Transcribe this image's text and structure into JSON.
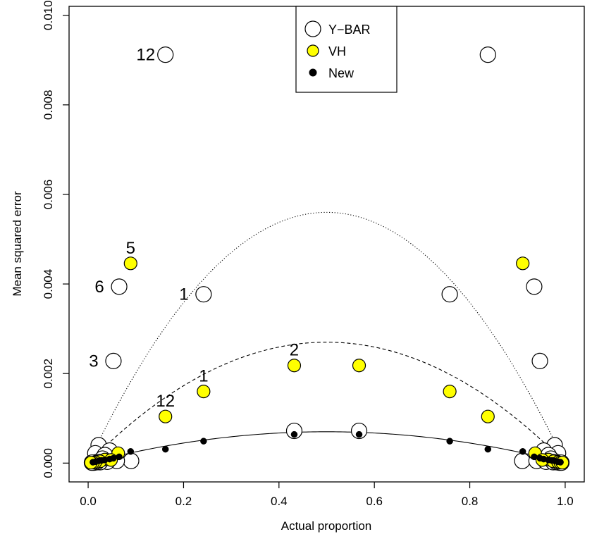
{
  "chart_data": {
    "type": "scatter",
    "xlabel": "Actual proportion",
    "ylabel": "Mean squared error",
    "xlim": [
      -0.04,
      1.04
    ],
    "ylim": [
      -0.00042,
      0.0102
    ],
    "xticks": [
      "0.0",
      "0.2",
      "0.4",
      "0.6",
      "0.8",
      "1.0"
    ],
    "xtick_values": [
      0,
      0.2,
      0.4,
      0.6,
      0.8,
      1.0
    ],
    "yticks": [
      "0.000",
      "0.002",
      "0.004",
      "0.006",
      "0.008",
      "0.010"
    ],
    "ytick_values": [
      0,
      0.002,
      0.004,
      0.006,
      0.008,
      0.01
    ],
    "legend": {
      "placement": "top-center",
      "entries": [
        {
          "label": "Y−BAR",
          "marker": "open-circle",
          "color": "#ffffff"
        },
        {
          "label": "VH",
          "marker": "filled-circle",
          "color": "#ffff00"
        },
        {
          "label": "New",
          "marker": "small-black-dot",
          "color": "#000000"
        }
      ]
    },
    "series": [
      {
        "name": "Y−BAR",
        "marker": "open-circle",
        "points": [
          [
            0.162,
            0.00912
          ],
          [
            0.838,
            0.00912
          ],
          [
            0.065,
            0.00394
          ],
          [
            0.935,
            0.00394
          ],
          [
            0.242,
            0.00377
          ],
          [
            0.758,
            0.00377
          ],
          [
            0.053,
            0.00228
          ],
          [
            0.947,
            0.00228
          ],
          [
            0.432,
            0.00072
          ],
          [
            0.568,
            0.00072
          ],
          [
            0.022,
            0.0004
          ],
          [
            0.978,
            0.0004
          ],
          [
            0.045,
            0.00028
          ],
          [
            0.955,
            0.00028
          ],
          [
            0.015,
            0.00022
          ],
          [
            0.985,
            0.00022
          ],
          [
            0.035,
            0.00018
          ],
          [
            0.965,
            0.00018
          ],
          [
            0.03,
            0.0001
          ],
          [
            0.97,
            0.0001
          ],
          [
            0.09,
            5e-05
          ],
          [
            0.91,
            5e-05
          ],
          [
            0.06,
            5e-05
          ],
          [
            0.94,
            5e-05
          ],
          [
            0.04,
            3e-05
          ],
          [
            0.96,
            3e-05
          ],
          [
            0.025,
            2e-05
          ],
          [
            0.975,
            2e-05
          ],
          [
            0.018,
            2e-05
          ],
          [
            0.982,
            2e-05
          ],
          [
            0.012,
            1e-05
          ],
          [
            0.988,
            1e-05
          ],
          [
            0.008,
            1e-05
          ],
          [
            0.992,
            1e-05
          ]
        ]
      },
      {
        "name": "VH",
        "marker": "filled-circle",
        "points": [
          [
            0.089,
            0.00446
          ],
          [
            0.911,
            0.00446
          ],
          [
            0.432,
            0.00218
          ],
          [
            0.568,
            0.00218
          ],
          [
            0.242,
            0.0016
          ],
          [
            0.758,
            0.0016
          ],
          [
            0.162,
            0.00104
          ],
          [
            0.838,
            0.00104
          ],
          [
            0.063,
            0.00022
          ],
          [
            0.937,
            0.00022
          ],
          [
            0.035,
            8e-05
          ],
          [
            0.965,
            8e-05
          ],
          [
            0.048,
            7e-05
          ],
          [
            0.952,
            7e-05
          ],
          [
            0.025,
            4e-05
          ],
          [
            0.975,
            4e-05
          ],
          [
            0.015,
            2e-05
          ],
          [
            0.985,
            2e-05
          ],
          [
            0.01,
            1e-05
          ],
          [
            0.99,
            1e-05
          ],
          [
            0.006,
            1e-05
          ],
          [
            0.994,
            1e-05
          ]
        ]
      },
      {
        "name": "New",
        "marker": "small-black-dot",
        "points": [
          [
            0.432,
            0.00064
          ],
          [
            0.568,
            0.00064
          ],
          [
            0.242,
            0.00049
          ],
          [
            0.758,
            0.00049
          ],
          [
            0.162,
            0.00031
          ],
          [
            0.838,
            0.00031
          ],
          [
            0.089,
            0.00026
          ],
          [
            0.911,
            0.00026
          ],
          [
            0.065,
            0.00014
          ],
          [
            0.935,
            0.00014
          ],
          [
            0.053,
            0.00011
          ],
          [
            0.947,
            0.00011
          ],
          [
            0.045,
            9e-05
          ],
          [
            0.955,
            9e-05
          ],
          [
            0.035,
            7e-05
          ],
          [
            0.965,
            7e-05
          ],
          [
            0.028,
            6e-05
          ],
          [
            0.972,
            6e-05
          ],
          [
            0.022,
            5e-05
          ],
          [
            0.978,
            5e-05
          ],
          [
            0.015,
            3e-05
          ],
          [
            0.985,
            3e-05
          ],
          [
            0.01,
            2e-05
          ],
          [
            0.99,
            2e-05
          ]
        ]
      }
    ],
    "curves": [
      {
        "style": "dotted",
        "formula": "0.0224*p*(1-p)",
        "x_range": [
          0.02,
          0.98
        ]
      },
      {
        "style": "dashed",
        "formula": "0.0108*p*(1-p)",
        "x_range": [
          0.02,
          0.98
        ]
      },
      {
        "style": "solid",
        "formula": "0.0028*p*(1-p)",
        "x_range": [
          0.02,
          0.98
        ]
      }
    ],
    "annotations": [
      {
        "text": "12",
        "x": 0.162,
        "y": 0.00912
      },
      {
        "text": "6",
        "x": 0.065,
        "y": 0.00394
      },
      {
        "text": "1",
        "x": 0.242,
        "y": 0.00377
      },
      {
        "text": "3",
        "x": 0.053,
        "y": 0.00228
      },
      {
        "text": "5",
        "x": 0.089,
        "y": 0.00446
      },
      {
        "text": "2",
        "x": 0.432,
        "y": 0.00218
      },
      {
        "text": "1",
        "x": 0.242,
        "y": 0.0016
      },
      {
        "text": "12",
        "x": 0.162,
        "y": 0.00104
      }
    ]
  }
}
